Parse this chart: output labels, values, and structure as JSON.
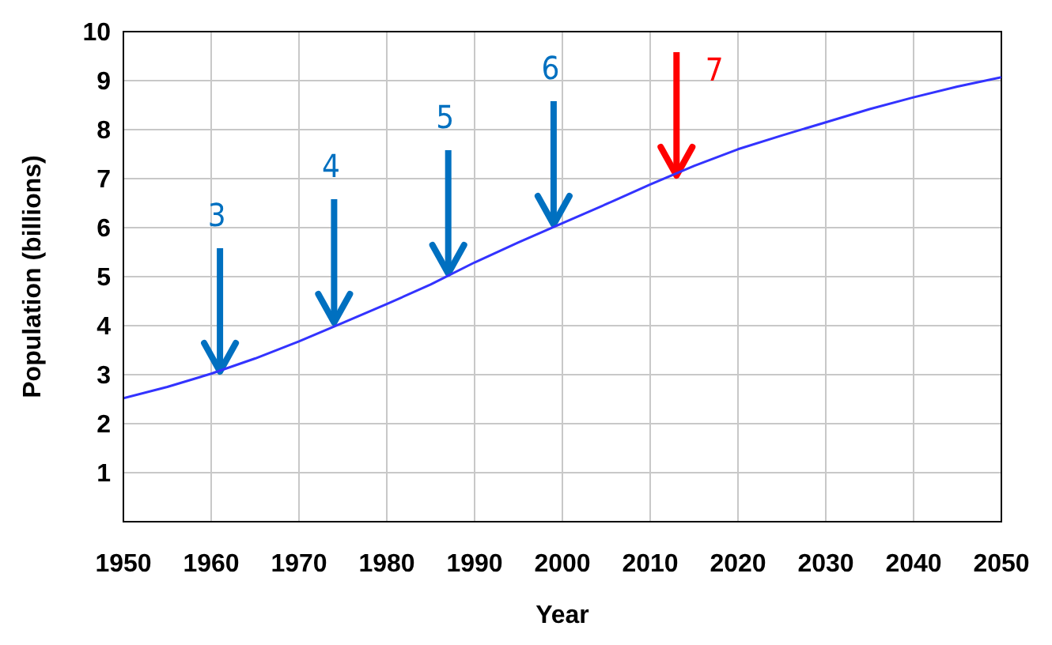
{
  "chart_data": {
    "type": "line",
    "xlabel": "Year",
    "ylabel": "Population (billions)",
    "x": [
      1950,
      1955,
      1960,
      1965,
      1970,
      1975,
      1980,
      1985,
      1990,
      1995,
      2000,
      2005,
      2010,
      2015,
      2020,
      2025,
      2030,
      2035,
      2040,
      2045,
      2050
    ],
    "series": [
      {
        "color": "#3333ff",
        "values": [
          2.52,
          2.75,
          3.02,
          3.33,
          3.68,
          4.06,
          4.44,
          4.84,
          5.29,
          5.7,
          6.09,
          6.48,
          6.88,
          7.26,
          7.6,
          7.88,
          8.15,
          8.42,
          8.66,
          8.88,
          9.07
        ]
      }
    ],
    "xlim": [
      1950,
      2050
    ],
    "xticks": [
      1950,
      1960,
      1970,
      1980,
      1990,
      2000,
      2010,
      2020,
      2030,
      2040,
      2050
    ],
    "ylim": [
      0,
      10
    ],
    "yticks": [
      {
        "value": 0,
        "label": null
      },
      1,
      2,
      3,
      4,
      5,
      6,
      7,
      8,
      9,
      10
    ],
    "grid": true,
    "marker": "none",
    "line_style": "solid",
    "annotations": [
      {
        "text": "3",
        "x": 1961,
        "y": 3
      },
      {
        "text": "4",
        "x": 1974,
        "y": 4
      },
      {
        "text": "5",
        "x": 1987,
        "y": 5
      },
      {
        "text": "6",
        "x": 1999,
        "y": 6
      },
      {
        "text": "7",
        "x": 2013,
        "y": 7
      }
    ]
  }
}
